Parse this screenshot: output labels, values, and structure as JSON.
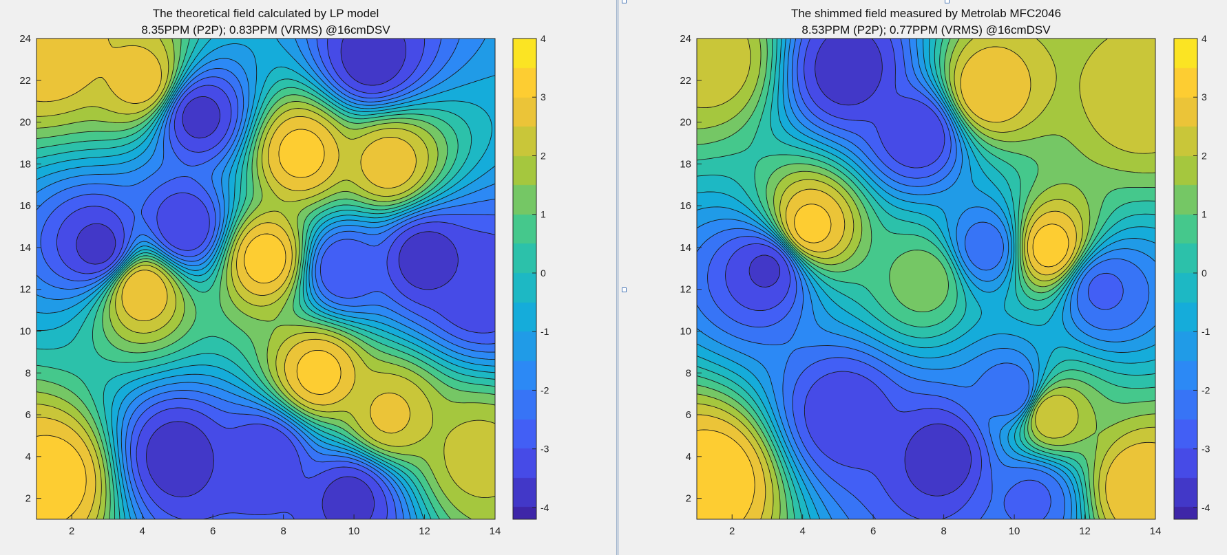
{
  "chart_data": [
    {
      "type": "heatmap",
      "subtype": "filled-contour",
      "title": "The theoretical field calculated by LP model",
      "subtitle": "8.35PPM (P2P); 0.83PPM (VRMS) @16cmDSV",
      "xlim": [
        1,
        14
      ],
      "ylim": [
        1,
        24
      ],
      "x_ticks": [
        2,
        4,
        6,
        8,
        10,
        12,
        14
      ],
      "y_ticks": [
        2,
        4,
        6,
        8,
        10,
        12,
        14,
        16,
        18,
        20,
        22,
        24
      ],
      "colorbar": {
        "range": [
          -4.2,
          4
        ],
        "ticks": [
          -4,
          -3,
          -2,
          -1,
          0,
          1,
          2,
          3,
          4
        ],
        "colormap": "parula"
      },
      "features": [
        {
          "x": 1.5,
          "y": 3,
          "value": 3.3
        },
        {
          "x": 1.5,
          "y": 23.5,
          "value": 3.0
        },
        {
          "x": 2.8,
          "y": 14,
          "value": -3.7
        },
        {
          "x": 4,
          "y": 12,
          "value": 3.0
        },
        {
          "x": 4,
          "y": 22,
          "value": 2.8
        },
        {
          "x": 5,
          "y": 4,
          "value": -3.8
        },
        {
          "x": 5.2,
          "y": 15,
          "value": -3.5
        },
        {
          "x": 5.6,
          "y": 20.3,
          "value": -3.7
        },
        {
          "x": 7.5,
          "y": 13.5,
          "value": 3.3
        },
        {
          "x": 8.5,
          "y": 18.5,
          "value": 3.2
        },
        {
          "x": 7.5,
          "y": 4,
          "value": -3.5
        },
        {
          "x": 9,
          "y": 8,
          "value": 3.2
        },
        {
          "x": 9.7,
          "y": 13,
          "value": -3.0
        },
        {
          "x": 10.5,
          "y": 23,
          "value": -3.8
        },
        {
          "x": 9.9,
          "y": 2,
          "value": -3.7
        },
        {
          "x": 11,
          "y": 6,
          "value": 2.6
        },
        {
          "x": 11,
          "y": 18,
          "value": 2.8
        },
        {
          "x": 12,
          "y": 13.5,
          "value": -3.8
        },
        {
          "x": 13.5,
          "y": 12,
          "value": -3.5
        },
        {
          "x": 13.5,
          "y": 4,
          "value": 2.2
        }
      ]
    },
    {
      "type": "heatmap",
      "subtype": "filled-contour",
      "title": "The shimmed field measured by Metrolab MFC2046",
      "subtitle": "8.53PPM (P2P); 0.77PPM (VRMS) @16cmDSV",
      "xlim": [
        1,
        14
      ],
      "ylim": [
        1,
        24
      ],
      "x_ticks": [
        2,
        4,
        6,
        8,
        10,
        12,
        14
      ],
      "y_ticks": [
        2,
        4,
        6,
        8,
        10,
        12,
        14,
        16,
        18,
        20,
        22,
        24
      ],
      "colorbar": {
        "range": [
          -4.2,
          4
        ],
        "ticks": [
          -4,
          -3,
          -2,
          -1,
          0,
          1,
          2,
          3,
          4
        ],
        "colormap": "parula"
      },
      "features": [
        {
          "x": 1.5,
          "y": 3,
          "value": 3.4
        },
        {
          "x": 1.5,
          "y": 23,
          "value": 2.3
        },
        {
          "x": 3,
          "y": 13,
          "value": -3.6
        },
        {
          "x": 4.2,
          "y": 15,
          "value": 3.2
        },
        {
          "x": 5.3,
          "y": 22.5,
          "value": -3.8
        },
        {
          "x": 5.2,
          "y": 6,
          "value": -3.4
        },
        {
          "x": 7.3,
          "y": 19.5,
          "value": -3.5
        },
        {
          "x": 8,
          "y": 4,
          "value": -3.8
        },
        {
          "x": 7.5,
          "y": 12.5,
          "value": 1.3
        },
        {
          "x": 9.2,
          "y": 21.5,
          "value": 3.0
        },
        {
          "x": 9.2,
          "y": 14,
          "value": -2.3
        },
        {
          "x": 10,
          "y": 7,
          "value": -2.5
        },
        {
          "x": 11,
          "y": 14,
          "value": 3.3
        },
        {
          "x": 11,
          "y": 6,
          "value": 2.5
        },
        {
          "x": 12.5,
          "y": 12,
          "value": -2.6
        },
        {
          "x": 13.5,
          "y": 2.5,
          "value": 3.0
        },
        {
          "x": 13.5,
          "y": 21,
          "value": 2.3
        },
        {
          "x": 10.5,
          "y": 2,
          "value": -2.6
        }
      ]
    }
  ]
}
